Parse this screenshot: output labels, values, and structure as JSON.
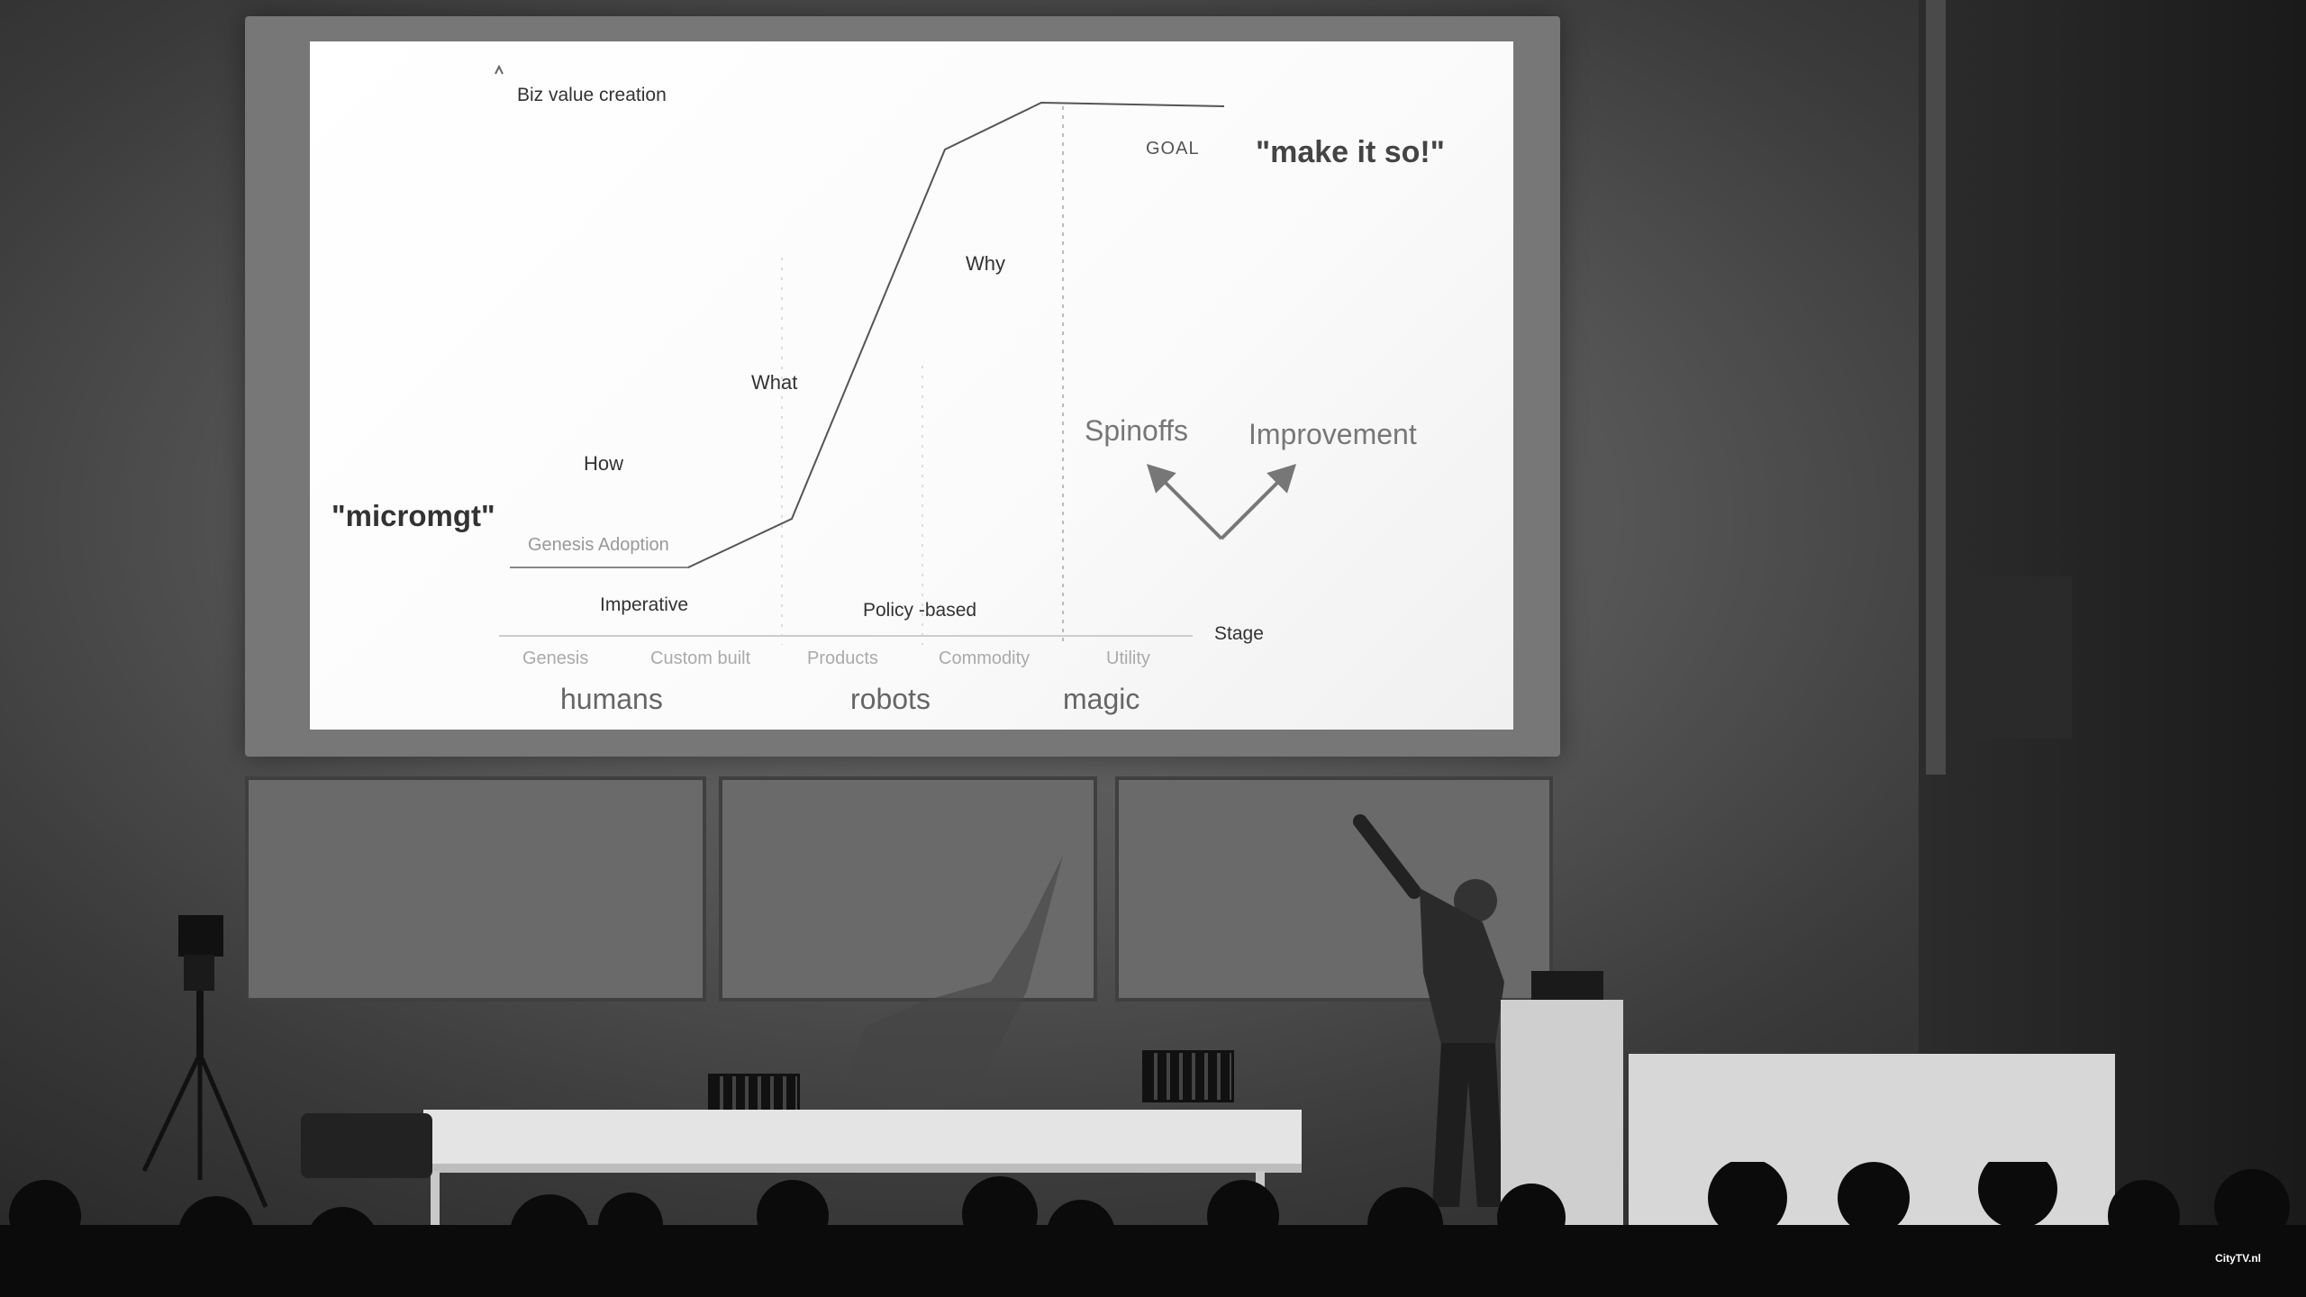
{
  "slide": {
    "axis_label": "Biz value creation",
    "goal": "GOAL",
    "make_it_so": "\"make it so!\"",
    "why": "Why",
    "what": "What",
    "how": "How",
    "micromgt": "\"micromgt\"",
    "genesis_adoption": "Genesis Adoption",
    "imperative": "Imperative",
    "policy_based": "Policy -based",
    "spinoffs": "Spinoffs",
    "improvement": "Improvement",
    "stage": "Stage",
    "stages": [
      "Genesis",
      "Custom built",
      "Products",
      "Commodity",
      "Utility"
    ],
    "groups": [
      "humans",
      "robots",
      "magic"
    ]
  },
  "watermark": "CityTV.nl"
}
